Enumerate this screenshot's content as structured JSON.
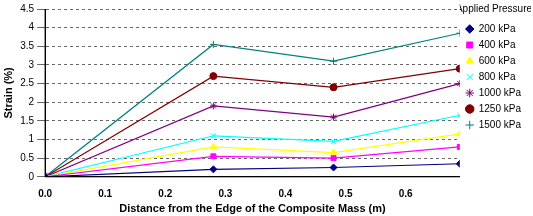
{
  "chart_data": {
    "type": "line",
    "x_label": "Distance from the Edge of the Composite Mass (m)",
    "y_label": "Strain (%)",
    "legend_title": "Applied Pressure:",
    "legend": "right",
    "grid": true,
    "x": [
      0,
      0.28,
      0.48,
      0.69
    ],
    "xlim": [
      0,
      0.69
    ],
    "xticks": [
      {
        "value": 0,
        "label": "0.0"
      },
      0.1,
      0.2,
      0.3,
      0.4,
      0.5,
      0.6
    ],
    "ylim": [
      0,
      4.5
    ],
    "yticks": [
      0,
      0.5,
      1,
      1.5,
      2,
      2.5,
      3,
      3.5,
      4,
      4.5
    ],
    "series": [
      {
        "name": "200 kPa",
        "color": "#000080",
        "marker": "diamond",
        "values": [
          0,
          0.2,
          0.25,
          0.35
        ]
      },
      {
        "name": "400 kPa",
        "color": "#ff00ff",
        "marker": "square",
        "values": [
          0,
          0.55,
          0.5,
          0.8
        ]
      },
      {
        "name": "600 kPa",
        "color": "#ffff00",
        "marker": "triangle",
        "values": [
          0,
          0.8,
          0.65,
          1.15
        ]
      },
      {
        "name": "800 kPa",
        "color": "#00ffff",
        "marker": "x",
        "values": [
          0,
          1.1,
          0.95,
          1.65
        ]
      },
      {
        "name": "1000 kPa",
        "color": "#800080",
        "marker": "star",
        "values": [
          0,
          1.9,
          1.6,
          2.5
        ]
      },
      {
        "name": "1250 kPa",
        "color": "#800000",
        "marker": "circle",
        "values": [
          0,
          2.7,
          2.4,
          2.9
        ]
      },
      {
        "name": "1500 kPa",
        "color": "#008080",
        "marker": "plus",
        "values": [
          0,
          3.55,
          3.1,
          3.85
        ]
      }
    ]
  }
}
